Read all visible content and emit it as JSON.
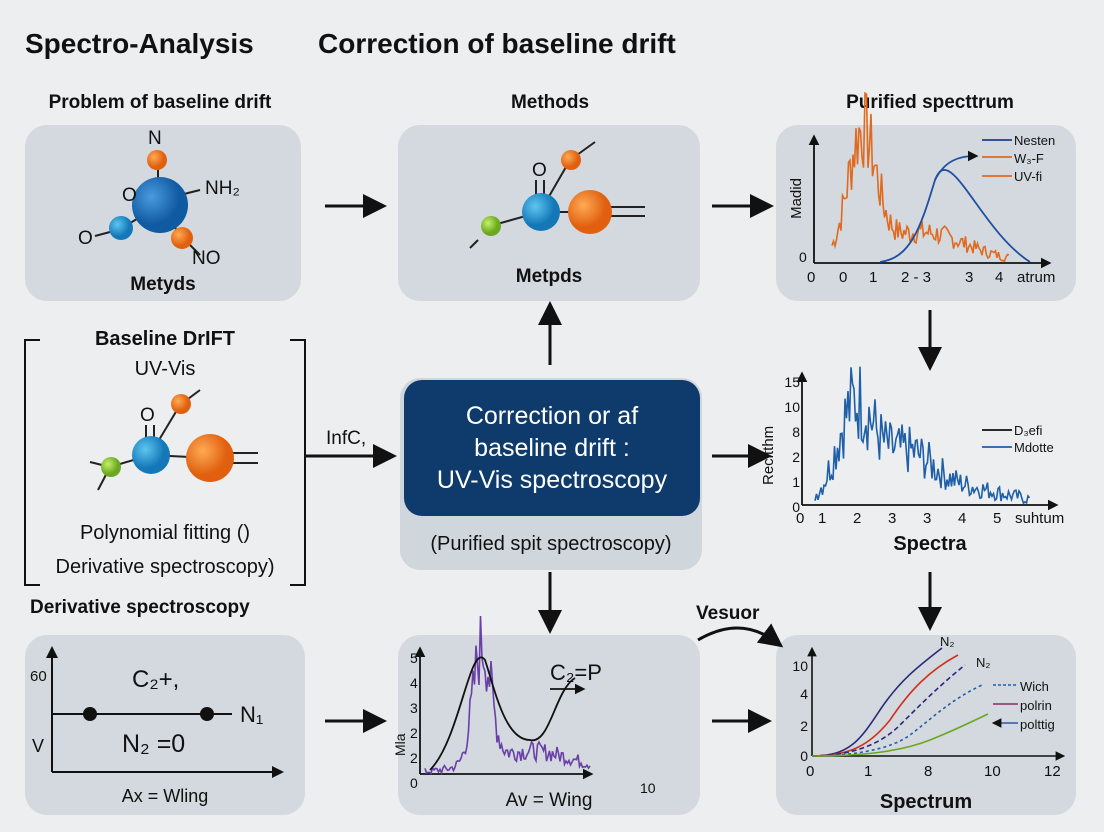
{
  "header": {
    "app_title": "Spectro-Analysis",
    "main_title": "Correction of baseline drift"
  },
  "colors": {
    "navy": "#0e3b6b",
    "panel": "#d3d9de",
    "orange": "#e06a1f",
    "blue": "#1f5fa8",
    "purple": "#6a3fa8",
    "green": "#7cb82f"
  },
  "panel_problem": {
    "heading": "Problem of baseline drift",
    "caption": "Metyds",
    "atoms": [
      "N",
      "O",
      "NH₂",
      "O",
      "NO"
    ]
  },
  "panel_methods": {
    "heading": "Methods",
    "caption": "Metpds",
    "atoms": [
      "O"
    ]
  },
  "panel_purified": {
    "heading": "Purified specttrum",
    "ylabel": "Madid",
    "xlabel": "atrum",
    "yticks": [
      "0"
    ],
    "xticks": [
      "0",
      "0",
      "1",
      "2 - 3",
      "3",
      "4"
    ],
    "legend": [
      "Nesten",
      "W₃-F",
      "UV-fi"
    ]
  },
  "baseline_box": {
    "title": "Baseline DrIFT",
    "subtitle": "UV-Vis",
    "atom": "O",
    "line1": "Polynomial fitting ()",
    "line2": "Derivative spectroscopy)"
  },
  "arrow_label_left": "InfC,",
  "center": {
    "line1": "Correction or af",
    "line2": "baseline drift :",
    "line3": "UV-Vis spectroscopy",
    "sub": "(Purified spit spectroscopy)"
  },
  "spectra_chart": {
    "caption": "Spectra",
    "ylabel": "Recitthm",
    "xlabel": "suhtum",
    "yticks": [
      "15",
      "10",
      "8",
      "2",
      "1",
      "0"
    ],
    "xticks": [
      "0",
      "1",
      "2",
      "3",
      "3",
      "4",
      "5"
    ],
    "legend": [
      "D₃efi",
      "Mdotte"
    ]
  },
  "derivative": {
    "heading": "Derivative spectroscopy",
    "y_top": "60",
    "y_mid": "V",
    "eq1": "C₂+,",
    "eq_n1": "N₁",
    "eq2": "N₂ =0",
    "caption": "Ax = Wling"
  },
  "wing_chart": {
    "ylabel": "Mla",
    "yticks": [
      "5",
      "4",
      "3",
      "2",
      "2",
      "0"
    ],
    "xtick_end": "10",
    "annotation": "C₂=P",
    "caption": "Av = Wing"
  },
  "curve_label": "Vesuor",
  "spectrum_chart": {
    "caption": "Spectrum",
    "yticks": [
      "10",
      "4",
      "2",
      "0"
    ],
    "xticks": [
      "0",
      "1",
      "8",
      "10",
      "12"
    ],
    "line_labels": [
      "N₂",
      "N₂"
    ],
    "legend": [
      "Wich",
      "polrin",
      "polttig"
    ]
  }
}
